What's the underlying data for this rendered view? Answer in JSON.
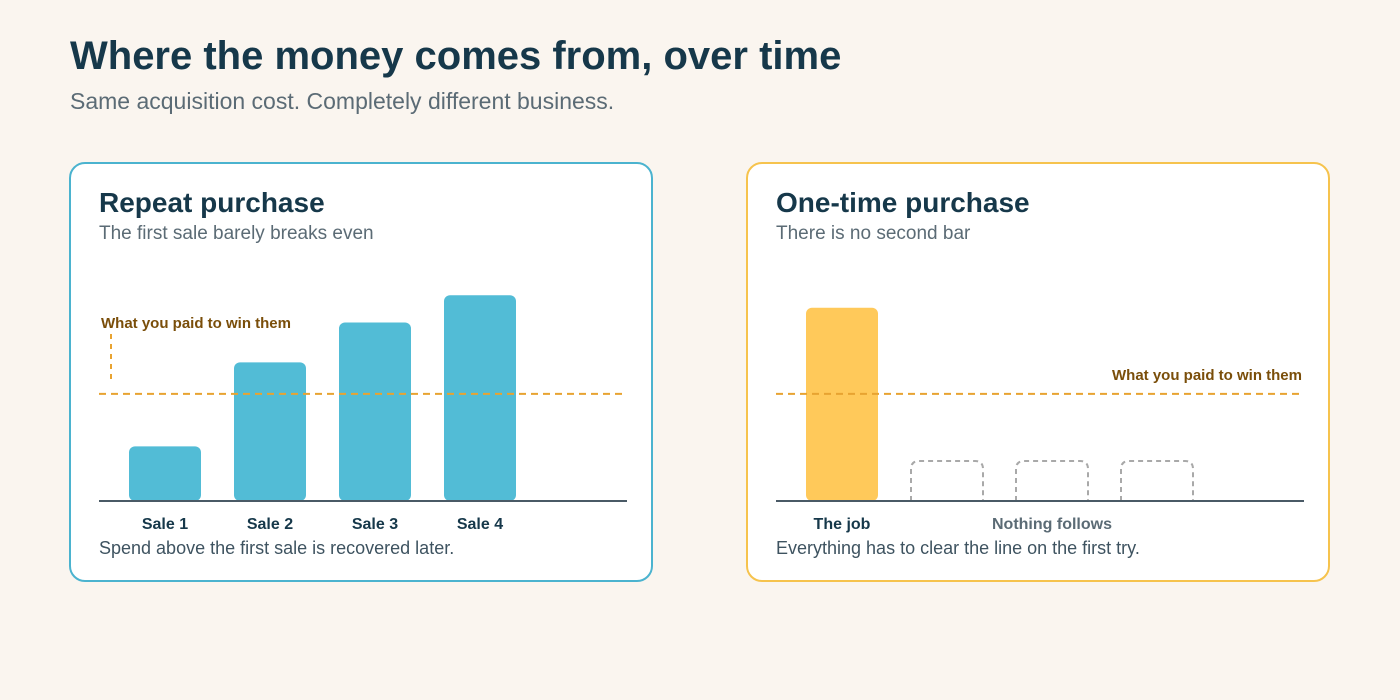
{
  "header": {
    "title": "Where the money comes from, over time",
    "subtitle": "Same acquisition cost. Completely different business."
  },
  "colors": {
    "repeat_bar": "#52bcd6",
    "one_time_bar": "#ffc95a",
    "cost_line": "#e8a331",
    "ghost_bar": "#a9a9a9",
    "baseline": "#4a5a66"
  },
  "panels": {
    "repeat": {
      "title": "Repeat purchase",
      "subtitle": "The first sale barely breaks even",
      "line_label": "What you paid to win them",
      "footnote": "Spend above the first sale is recovered later."
    },
    "one_time": {
      "title": "One-time purchase",
      "subtitle": "There is no second bar",
      "line_label": "What you paid to win them",
      "ghost_label": "Nothing follows",
      "footnote": "Everything has to clear the line on the first try."
    }
  },
  "chart_data": [
    {
      "type": "bar",
      "categories": [
        "Sale 1",
        "Sale 2",
        "Sale 3",
        "Sale 4"
      ],
      "values": [
        0.26,
        0.66,
        0.85,
        0.98
      ],
      "reference_line": {
        "label": "What you paid to win them",
        "value": 0.51
      },
      "ylim": [
        0,
        1
      ]
    },
    {
      "type": "bar",
      "categories": [
        "The job"
      ],
      "values": [
        0.92
      ],
      "ghost_bars": 3,
      "ghost_label": "Nothing follows",
      "reference_line": {
        "label": "What you paid to win them",
        "value": 0.51
      },
      "ylim": [
        0,
        1
      ]
    }
  ]
}
